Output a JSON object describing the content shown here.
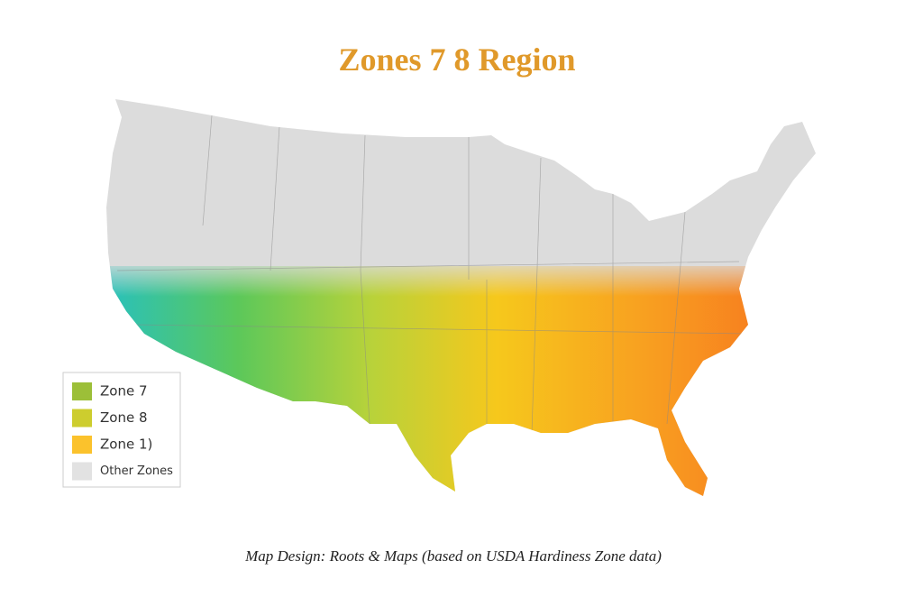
{
  "title": "Zones 7 8 Region",
  "legend": {
    "items": [
      {
        "label": "Zone 7",
        "color": "#9cbf38"
      },
      {
        "label": "Zone 8",
        "color": "#cdcd2e"
      },
      {
        "label": "Zone 1)",
        "color": "#fbc22c"
      },
      {
        "label": "Other Zones",
        "color": "#e2e2e2"
      }
    ]
  },
  "caption": "Map Design: Roots & Maps (based on USDA Hardiness Zone data)"
}
